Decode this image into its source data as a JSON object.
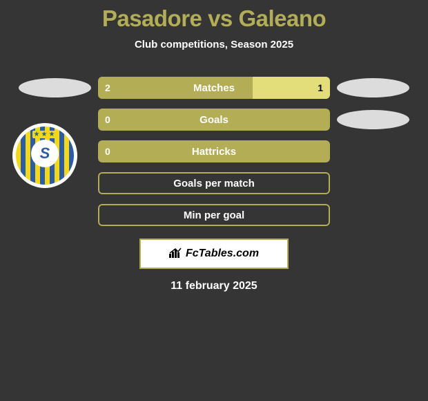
{
  "title": "Pasadore vs Galeano",
  "subtitle": "Club competitions, Season 2025",
  "stats": [
    {
      "label": "Matches",
      "left_value": "2",
      "right_value": "1",
      "left_pct": 66.7,
      "right_pct": 33.3,
      "show_left_ellipse": true,
      "show_right_ellipse": true,
      "left_color": "#b3ae56",
      "right_color": "#e4de7a"
    },
    {
      "label": "Goals",
      "left_value": "0",
      "right_value": "",
      "left_pct": 100,
      "right_pct": 0,
      "show_left_ellipse": false,
      "show_right_ellipse": true,
      "left_color": "#b3ae56",
      "right_color": "#e4de7a"
    },
    {
      "label": "Hattricks",
      "left_value": "0",
      "right_value": "",
      "left_pct": 100,
      "right_pct": 0,
      "show_left_ellipse": false,
      "show_right_ellipse": false,
      "left_color": "#b3ae56",
      "right_color": "#e4de7a"
    },
    {
      "label": "Goals per match",
      "left_value": "",
      "right_value": "",
      "left_pct": 0,
      "right_pct": 0,
      "empty": true,
      "show_left_ellipse": false,
      "show_right_ellipse": false,
      "border_color": "#b3ae56"
    },
    {
      "label": "Min per goal",
      "left_value": "",
      "right_value": "",
      "left_pct": 0,
      "right_pct": 0,
      "empty": true,
      "show_left_ellipse": false,
      "show_right_ellipse": false,
      "border_color": "#b3ae56"
    }
  ],
  "footer": {
    "brand": "FcTables.com",
    "date": "11 february 2025"
  },
  "colors": {
    "background": "#353535",
    "accent": "#b3ae56",
    "accent_light": "#e4de7a",
    "ellipse": "#dcdcdc",
    "text_light": "#ffffff",
    "text_dark": "#000000",
    "badge_yellow": "#f5d815",
    "badge_blue": "#2a5caa"
  },
  "typography": {
    "title_fontsize": 33,
    "subtitle_fontsize": 15,
    "stat_label_fontsize": 15,
    "stat_value_fontsize": 14,
    "footer_fontsize": 16
  }
}
